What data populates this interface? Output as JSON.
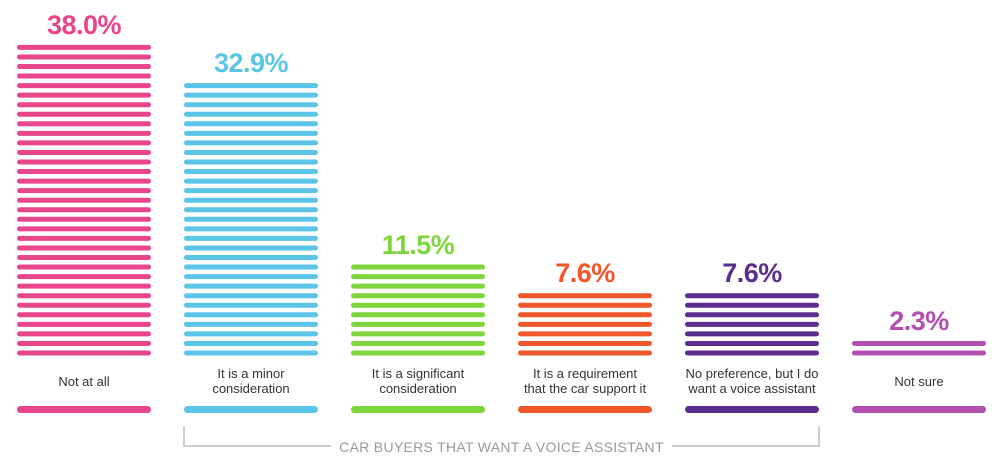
{
  "chart_data": {
    "type": "bar",
    "categories": [
      "Not at all",
      "It is a minor consideration",
      "It is a significant consideration",
      "It is a requirement that the car support it",
      "No preference, but I do want a voice assistant",
      "Not sure"
    ],
    "category_lines": [
      [
        "Not at all"
      ],
      [
        "It is a minor",
        "consideration"
      ],
      [
        "It is a significant",
        "consideration"
      ],
      [
        "It is a requirement",
        "that the car support it"
      ],
      [
        "No preference, but I do",
        "want a voice assistant"
      ],
      [
        "Not sure"
      ]
    ],
    "values": [
      38.0,
      32.9,
      11.5,
      7.6,
      7.6,
      2.3
    ],
    "value_labels": [
      "38.0%",
      "32.9%",
      "11.5%",
      "7.6%",
      "7.6%",
      "2.3%"
    ],
    "colors": [
      "#e8458b",
      "#5bc5e8",
      "#7ed63c",
      "#f0572a",
      "#5b2d8e",
      "#b34fb0"
    ],
    "ylim": [
      0,
      38
    ],
    "grid": false,
    "legend": "none",
    "group_bracket": {
      "label": "CAR BUYERS THAT WANT A VOICE ASSISTANT",
      "from_category": 1,
      "to_category": 4
    }
  }
}
